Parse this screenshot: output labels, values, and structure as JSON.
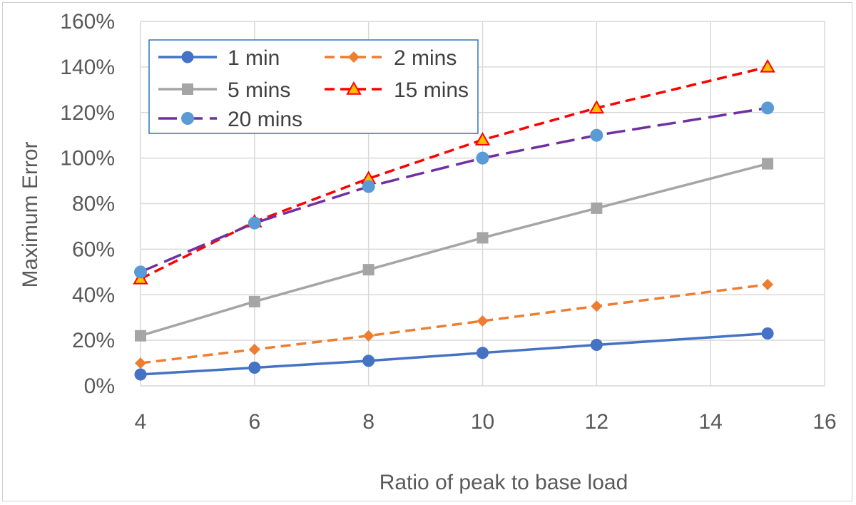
{
  "chart_data": {
    "type": "line",
    "title": "",
    "xlabel": "Ratio of peak to base load",
    "ylabel": "Maximum Error",
    "xlim": [
      4,
      16
    ],
    "ylim": [
      0,
      160
    ],
    "x_ticks": [
      4,
      6,
      8,
      10,
      12,
      14,
      16
    ],
    "y_ticks": [
      "0%",
      "20%",
      "40%",
      "60%",
      "80%",
      "100%",
      "120%",
      "140%",
      "160%"
    ],
    "y_tick_values": [
      0,
      20,
      40,
      60,
      80,
      100,
      120,
      140,
      160
    ],
    "grid": true,
    "legend_position": "top-left",
    "x": [
      4,
      6,
      8,
      10,
      12,
      15
    ],
    "series": [
      {
        "name": "1 min",
        "values": [
          5,
          8,
          11,
          14.5,
          18,
          23
        ],
        "color": "#4472C4",
        "dash": "solid",
        "marker": "circle"
      },
      {
        "name": "2 mins",
        "values": [
          10,
          16,
          22,
          28.5,
          35,
          44.5
        ],
        "color": "#ED7D31",
        "dash": "dashed",
        "marker": "diamond"
      },
      {
        "name": "5 mins",
        "values": [
          22,
          37,
          51,
          65,
          78,
          97.5
        ],
        "color": "#A5A5A5",
        "dash": "solid",
        "marker": "square"
      },
      {
        "name": "15 mins",
        "values": [
          47,
          72,
          91,
          108,
          122,
          140
        ],
        "color": "#FF0000",
        "dash": "dashed",
        "marker": "triangle"
      },
      {
        "name": "20 mins",
        "values": [
          50,
          71.5,
          87.5,
          100,
          110,
          122
        ],
        "color": "#7030A0",
        "dash": "longdash",
        "marker": "circle-light"
      }
    ]
  }
}
